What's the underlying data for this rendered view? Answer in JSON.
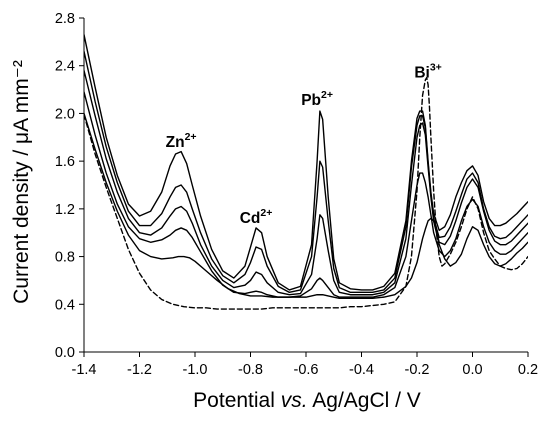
{
  "chart_data": {
    "type": "line",
    "title": "",
    "xlabel": {
      "before": "Potential ",
      "italic": "vs.",
      "after": " Ag/AgCl / V"
    },
    "ylabel": "Current density / μA mm⁻²",
    "xlim": [
      -1.4,
      0.2
    ],
    "ylim": [
      0.0,
      2.8
    ],
    "x_ticks": [
      "-1.4",
      "-1.2",
      "-1.0",
      "-0.8",
      "-0.6",
      "-0.4",
      "-0.2",
      "0.0",
      "0.2"
    ],
    "y_ticks": [
      "0.0",
      "0.4",
      "0.8",
      "1.2",
      "1.6",
      "2.0",
      "2.4",
      "2.8"
    ],
    "grid": false,
    "legend": "none",
    "annotations": [
      {
        "ion": "Zn",
        "charge": "2+",
        "x": -1.05,
        "y": 1.72
      },
      {
        "ion": "Cd",
        "charge": "2+",
        "x": -0.78,
        "y": 1.08
      },
      {
        "ion": "Pb",
        "charge": "2+",
        "x": -0.56,
        "y": 2.07
      },
      {
        "ion": "Bi",
        "charge": "3+",
        "x": -0.16,
        "y": 2.3
      }
    ],
    "series": [
      {
        "style": "dashed",
        "color": "#000000",
        "x": [
          -1.4,
          -1.36,
          -1.32,
          -1.28,
          -1.24,
          -1.2,
          -1.16,
          -1.12,
          -1.08,
          -1.04,
          -1.0,
          -0.96,
          -0.92,
          -0.88,
          -0.84,
          -0.8,
          -0.76,
          -0.72,
          -0.68,
          -0.64,
          -0.6,
          -0.56,
          -0.52,
          -0.48,
          -0.44,
          -0.4,
          -0.36,
          -0.32,
          -0.28,
          -0.24,
          -0.22,
          -0.2,
          -0.19,
          -0.18,
          -0.17,
          -0.165,
          -0.16,
          -0.155,
          -0.15,
          -0.14,
          -0.13,
          -0.12,
          -0.11,
          -0.1,
          -0.09,
          -0.08,
          -0.06,
          -0.04,
          -0.02,
          0.0,
          0.02,
          0.04,
          0.06,
          0.08,
          0.1,
          0.12,
          0.14,
          0.16,
          0.18,
          0.2
        ],
        "y": [
          1.99,
          1.66,
          1.38,
          1.12,
          0.86,
          0.66,
          0.52,
          0.44,
          0.4,
          0.38,
          0.37,
          0.37,
          0.36,
          0.36,
          0.36,
          0.36,
          0.36,
          0.37,
          0.37,
          0.37,
          0.37,
          0.37,
          0.37,
          0.37,
          0.38,
          0.38,
          0.39,
          0.4,
          0.42,
          0.55,
          0.8,
          1.35,
          1.8,
          2.15,
          2.28,
          2.3,
          2.24,
          2.05,
          1.8,
          1.35,
          1.0,
          0.8,
          0.72,
          0.74,
          0.78,
          0.82,
          0.92,
          1.05,
          1.2,
          1.3,
          1.2,
          1.0,
          0.85,
          0.78,
          0.72,
          0.7,
          0.69,
          0.7,
          0.74,
          0.8
        ]
      },
      {
        "style": "solid",
        "color": "#000000",
        "x": [
          -1.4,
          -1.36,
          -1.32,
          -1.28,
          -1.24,
          -1.2,
          -1.16,
          -1.12,
          -1.08,
          -1.06,
          -1.04,
          -1.02,
          -1.0,
          -0.96,
          -0.92,
          -0.88,
          -0.84,
          -0.8,
          -0.78,
          -0.76,
          -0.72,
          -0.68,
          -0.64,
          -0.6,
          -0.58,
          -0.56,
          -0.55,
          -0.54,
          -0.52,
          -0.5,
          -0.48,
          -0.44,
          -0.4,
          -0.36,
          -0.32,
          -0.28,
          -0.24,
          -0.22,
          -0.2,
          -0.19,
          -0.18,
          -0.17,
          -0.16,
          -0.15,
          -0.14,
          -0.13,
          -0.12,
          -0.1,
          -0.08,
          -0.06,
          -0.04,
          -0.02,
          0.0,
          0.02,
          0.04,
          0.06,
          0.08,
          0.1,
          0.12,
          0.14,
          0.16,
          0.18,
          0.2
        ],
        "y": [
          2.0,
          1.7,
          1.42,
          1.18,
          0.98,
          0.85,
          0.8,
          0.78,
          0.79,
          0.8,
          0.8,
          0.79,
          0.76,
          0.68,
          0.6,
          0.53,
          0.49,
          0.47,
          0.47,
          0.47,
          0.46,
          0.46,
          0.46,
          0.46,
          0.47,
          0.48,
          0.48,
          0.48,
          0.47,
          0.46,
          0.45,
          0.45,
          0.45,
          0.45,
          0.46,
          0.48,
          0.55,
          0.62,
          0.75,
          0.85,
          0.95,
          1.03,
          1.1,
          1.12,
          1.1,
          1.0,
          0.9,
          0.78,
          0.72,
          0.75,
          0.82,
          0.95,
          1.05,
          1.02,
          0.9,
          0.8,
          0.74,
          0.72,
          0.74,
          0.78,
          0.83,
          0.87,
          0.92
        ]
      },
      {
        "style": "solid",
        "color": "#000000",
        "x": [
          -1.4,
          -1.36,
          -1.32,
          -1.28,
          -1.24,
          -1.2,
          -1.16,
          -1.12,
          -1.09,
          -1.07,
          -1.05,
          -1.03,
          -1.01,
          -0.98,
          -0.94,
          -0.9,
          -0.86,
          -0.82,
          -0.8,
          -0.78,
          -0.76,
          -0.74,
          -0.7,
          -0.66,
          -0.62,
          -0.58,
          -0.56,
          -0.55,
          -0.54,
          -0.52,
          -0.5,
          -0.48,
          -0.44,
          -0.4,
          -0.36,
          -0.32,
          -0.28,
          -0.24,
          -0.22,
          -0.2,
          -0.19,
          -0.18,
          -0.17,
          -0.16,
          -0.15,
          -0.14,
          -0.12,
          -0.1,
          -0.08,
          -0.06,
          -0.04,
          -0.02,
          0.0,
          0.02,
          0.04,
          0.06,
          0.08,
          0.1,
          0.12,
          0.14,
          0.16,
          0.18,
          0.2
        ],
        "y": [
          2.18,
          1.82,
          1.5,
          1.24,
          1.05,
          0.95,
          0.92,
          0.94,
          0.98,
          1.02,
          1.04,
          1.02,
          0.96,
          0.84,
          0.68,
          0.56,
          0.5,
          0.49,
          0.5,
          0.51,
          0.5,
          0.48,
          0.46,
          0.46,
          0.47,
          0.53,
          0.6,
          0.62,
          0.6,
          0.54,
          0.48,
          0.46,
          0.46,
          0.46,
          0.46,
          0.48,
          0.54,
          0.8,
          1.1,
          1.4,
          1.5,
          1.5,
          1.42,
          1.3,
          1.15,
          1.0,
          0.85,
          0.8,
          0.85,
          0.95,
          1.1,
          1.22,
          1.28,
          1.22,
          1.05,
          0.92,
          0.85,
          0.82,
          0.82,
          0.85,
          0.9,
          0.95,
          1.0
        ]
      },
      {
        "style": "solid",
        "color": "#000000",
        "x": [
          -1.4,
          -1.36,
          -1.32,
          -1.28,
          -1.24,
          -1.2,
          -1.16,
          -1.12,
          -1.09,
          -1.07,
          -1.05,
          -1.03,
          -1.01,
          -0.98,
          -0.94,
          -0.9,
          -0.86,
          -0.82,
          -0.8,
          -0.78,
          -0.76,
          -0.74,
          -0.7,
          -0.66,
          -0.62,
          -0.58,
          -0.56,
          -0.55,
          -0.54,
          -0.52,
          -0.5,
          -0.48,
          -0.44,
          -0.4,
          -0.36,
          -0.32,
          -0.28,
          -0.24,
          -0.22,
          -0.2,
          -0.19,
          -0.18,
          -0.17,
          -0.16,
          -0.15,
          -0.14,
          -0.12,
          -0.1,
          -0.08,
          -0.06,
          -0.04,
          -0.02,
          0.0,
          0.02,
          0.04,
          0.06,
          0.08,
          0.1,
          0.12,
          0.14,
          0.16,
          0.18,
          0.2
        ],
        "y": [
          2.36,
          1.98,
          1.62,
          1.34,
          1.12,
          1.0,
          0.98,
          1.04,
          1.14,
          1.2,
          1.22,
          1.18,
          1.08,
          0.9,
          0.72,
          0.6,
          0.54,
          0.56,
          0.6,
          0.67,
          0.65,
          0.58,
          0.5,
          0.48,
          0.49,
          0.65,
          0.95,
          1.15,
          1.12,
          0.85,
          0.6,
          0.5,
          0.48,
          0.48,
          0.48,
          0.5,
          0.58,
          0.95,
          1.4,
          1.8,
          1.9,
          1.92,
          1.82,
          1.55,
          1.3,
          1.1,
          0.92,
          0.9,
          0.97,
          1.1,
          1.25,
          1.38,
          1.45,
          1.38,
          1.18,
          1.02,
          0.93,
          0.9,
          0.9,
          0.93,
          0.98,
          1.03,
          1.08
        ]
      },
      {
        "style": "solid",
        "color": "#000000",
        "x": [
          -1.4,
          -1.36,
          -1.32,
          -1.28,
          -1.24,
          -1.2,
          -1.16,
          -1.12,
          -1.09,
          -1.07,
          -1.05,
          -1.03,
          -1.01,
          -0.98,
          -0.94,
          -0.9,
          -0.86,
          -0.82,
          -0.8,
          -0.78,
          -0.76,
          -0.74,
          -0.7,
          -0.66,
          -0.62,
          -0.58,
          -0.56,
          -0.55,
          -0.54,
          -0.52,
          -0.5,
          -0.48,
          -0.44,
          -0.4,
          -0.36,
          -0.32,
          -0.28,
          -0.24,
          -0.22,
          -0.2,
          -0.19,
          -0.18,
          -0.17,
          -0.16,
          -0.15,
          -0.14,
          -0.12,
          -0.1,
          -0.08,
          -0.06,
          -0.04,
          -0.02,
          0.0,
          0.02,
          0.04,
          0.06,
          0.08,
          0.1,
          0.12,
          0.14,
          0.16,
          0.18,
          0.2
        ],
        "y": [
          2.52,
          2.1,
          1.72,
          1.42,
          1.18,
          1.06,
          1.06,
          1.16,
          1.3,
          1.38,
          1.4,
          1.34,
          1.2,
          1.0,
          0.78,
          0.64,
          0.58,
          0.65,
          0.75,
          0.88,
          0.86,
          0.72,
          0.55,
          0.5,
          0.52,
          0.8,
          1.3,
          1.6,
          1.55,
          1.1,
          0.7,
          0.54,
          0.5,
          0.5,
          0.5,
          0.52,
          0.62,
          1.05,
          1.55,
          1.9,
          1.98,
          1.98,
          1.88,
          1.58,
          1.32,
          1.12,
          0.96,
          0.97,
          1.05,
          1.18,
          1.32,
          1.45,
          1.5,
          1.42,
          1.2,
          1.05,
          0.97,
          0.95,
          0.96,
          1.0,
          1.05,
          1.1,
          1.15
        ]
      },
      {
        "style": "solid",
        "color": "#000000",
        "x": [
          -1.4,
          -1.36,
          -1.32,
          -1.28,
          -1.24,
          -1.2,
          -1.16,
          -1.12,
          -1.09,
          -1.07,
          -1.05,
          -1.03,
          -1.01,
          -0.98,
          -0.94,
          -0.9,
          -0.86,
          -0.82,
          -0.8,
          -0.78,
          -0.76,
          -0.74,
          -0.7,
          -0.66,
          -0.62,
          -0.58,
          -0.56,
          -0.55,
          -0.54,
          -0.52,
          -0.5,
          -0.48,
          -0.44,
          -0.4,
          -0.36,
          -0.32,
          -0.28,
          -0.24,
          -0.22,
          -0.2,
          -0.19,
          -0.18,
          -0.17,
          -0.16,
          -0.15,
          -0.14,
          -0.12,
          -0.1,
          -0.08,
          -0.06,
          -0.04,
          -0.02,
          0.0,
          0.02,
          0.04,
          0.06,
          0.08,
          0.1,
          0.12,
          0.14,
          0.16,
          0.18,
          0.2
        ],
        "y": [
          2.66,
          2.22,
          1.8,
          1.48,
          1.24,
          1.14,
          1.18,
          1.34,
          1.56,
          1.66,
          1.68,
          1.58,
          1.4,
          1.14,
          0.86,
          0.68,
          0.62,
          0.72,
          0.88,
          1.04,
          1.0,
          0.8,
          0.58,
          0.52,
          0.55,
          0.9,
          1.6,
          2.02,
          1.95,
          1.3,
          0.78,
          0.58,
          0.53,
          0.52,
          0.52,
          0.55,
          0.66,
          1.1,
          1.6,
          1.96,
          2.02,
          2.02,
          1.9,
          1.6,
          1.34,
          1.16,
          1.02,
          1.05,
          1.15,
          1.3,
          1.42,
          1.52,
          1.56,
          1.48,
          1.26,
          1.12,
          1.06,
          1.06,
          1.08,
          1.12,
          1.16,
          1.21,
          1.26
        ]
      }
    ]
  }
}
